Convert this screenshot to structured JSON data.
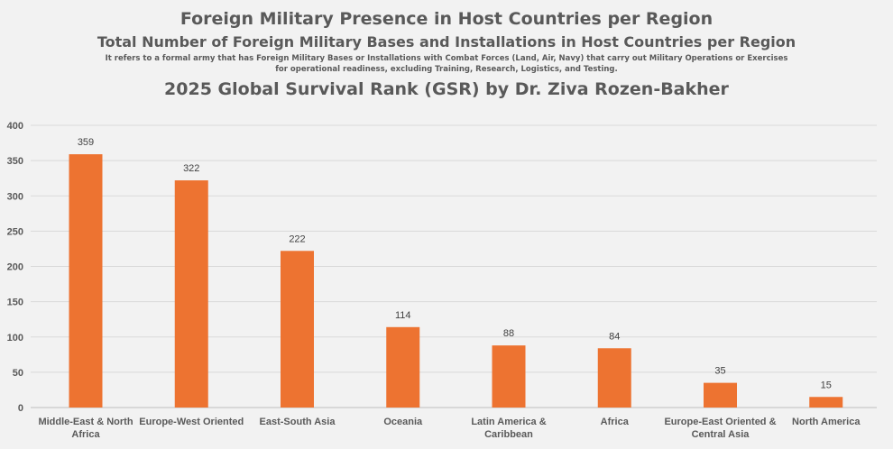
{
  "chart_data": {
    "type": "bar",
    "title": "Foreign Military Presence in Host Countries per Region",
    "subtitle": "Total Number of Foreign Military Bases and Installations in Host Countries per Region",
    "note": "It refers to a formal army that has Foreign Military Bases or Installations with Combat Forces (Land, Air, Navy) that carry out Military Operations or Exercises for operational readiness,  excluding Training, Research, Logistics, and Testing.",
    "source_line": "2025 Global Survival Rank (GSR) by Dr. Ziva Rozen-Bakher",
    "categories": [
      [
        "Middle-East & North",
        "Africa"
      ],
      [
        "Europe-West Oriented"
      ],
      [
        "East-South Asia"
      ],
      [
        "Oceania"
      ],
      [
        "Latin America &",
        "Caribbean"
      ],
      [
        "Africa"
      ],
      [
        "Europe-East Oriented &",
        "Central Asia"
      ],
      [
        "North America"
      ]
    ],
    "values": [
      359,
      322,
      222,
      114,
      88,
      84,
      35,
      15
    ],
    "ylim": [
      0,
      400
    ],
    "yticks": [
      0,
      50,
      100,
      150,
      200,
      250,
      300,
      350,
      400
    ],
    "xlabel": "",
    "ylabel": "",
    "grid": true,
    "bar_color": "#ed7331",
    "grid_color": "#d9d9d9"
  }
}
